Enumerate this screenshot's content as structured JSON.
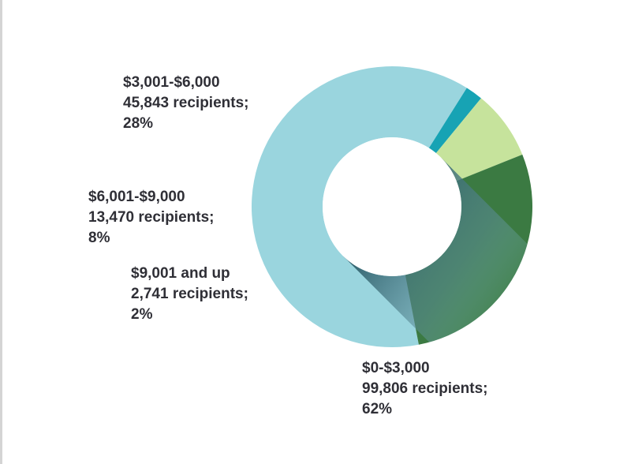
{
  "chart_data": {
    "type": "pie",
    "variant": "donut",
    "slices": [
      {
        "label": "$0-$3,000",
        "recipients": "99,806 recipients;",
        "percent_text": "62%",
        "value": 62,
        "color": "#9ad5de"
      },
      {
        "label": "$9,001 and up",
        "recipients": "2,741 recipients;",
        "percent_text": "2%",
        "value": 2,
        "color": "#17a3b4"
      },
      {
        "label": "$6,001-$9,000",
        "recipients": "13,470 recipients;",
        "percent_text": "8%",
        "value": 8,
        "color": "#c6e39c"
      },
      {
        "label": "$3,001-$6,000",
        "recipients": "45,843 recipients;",
        "percent_text": "28%",
        "value": 28,
        "color": "#3b7a42"
      }
    ]
  }
}
